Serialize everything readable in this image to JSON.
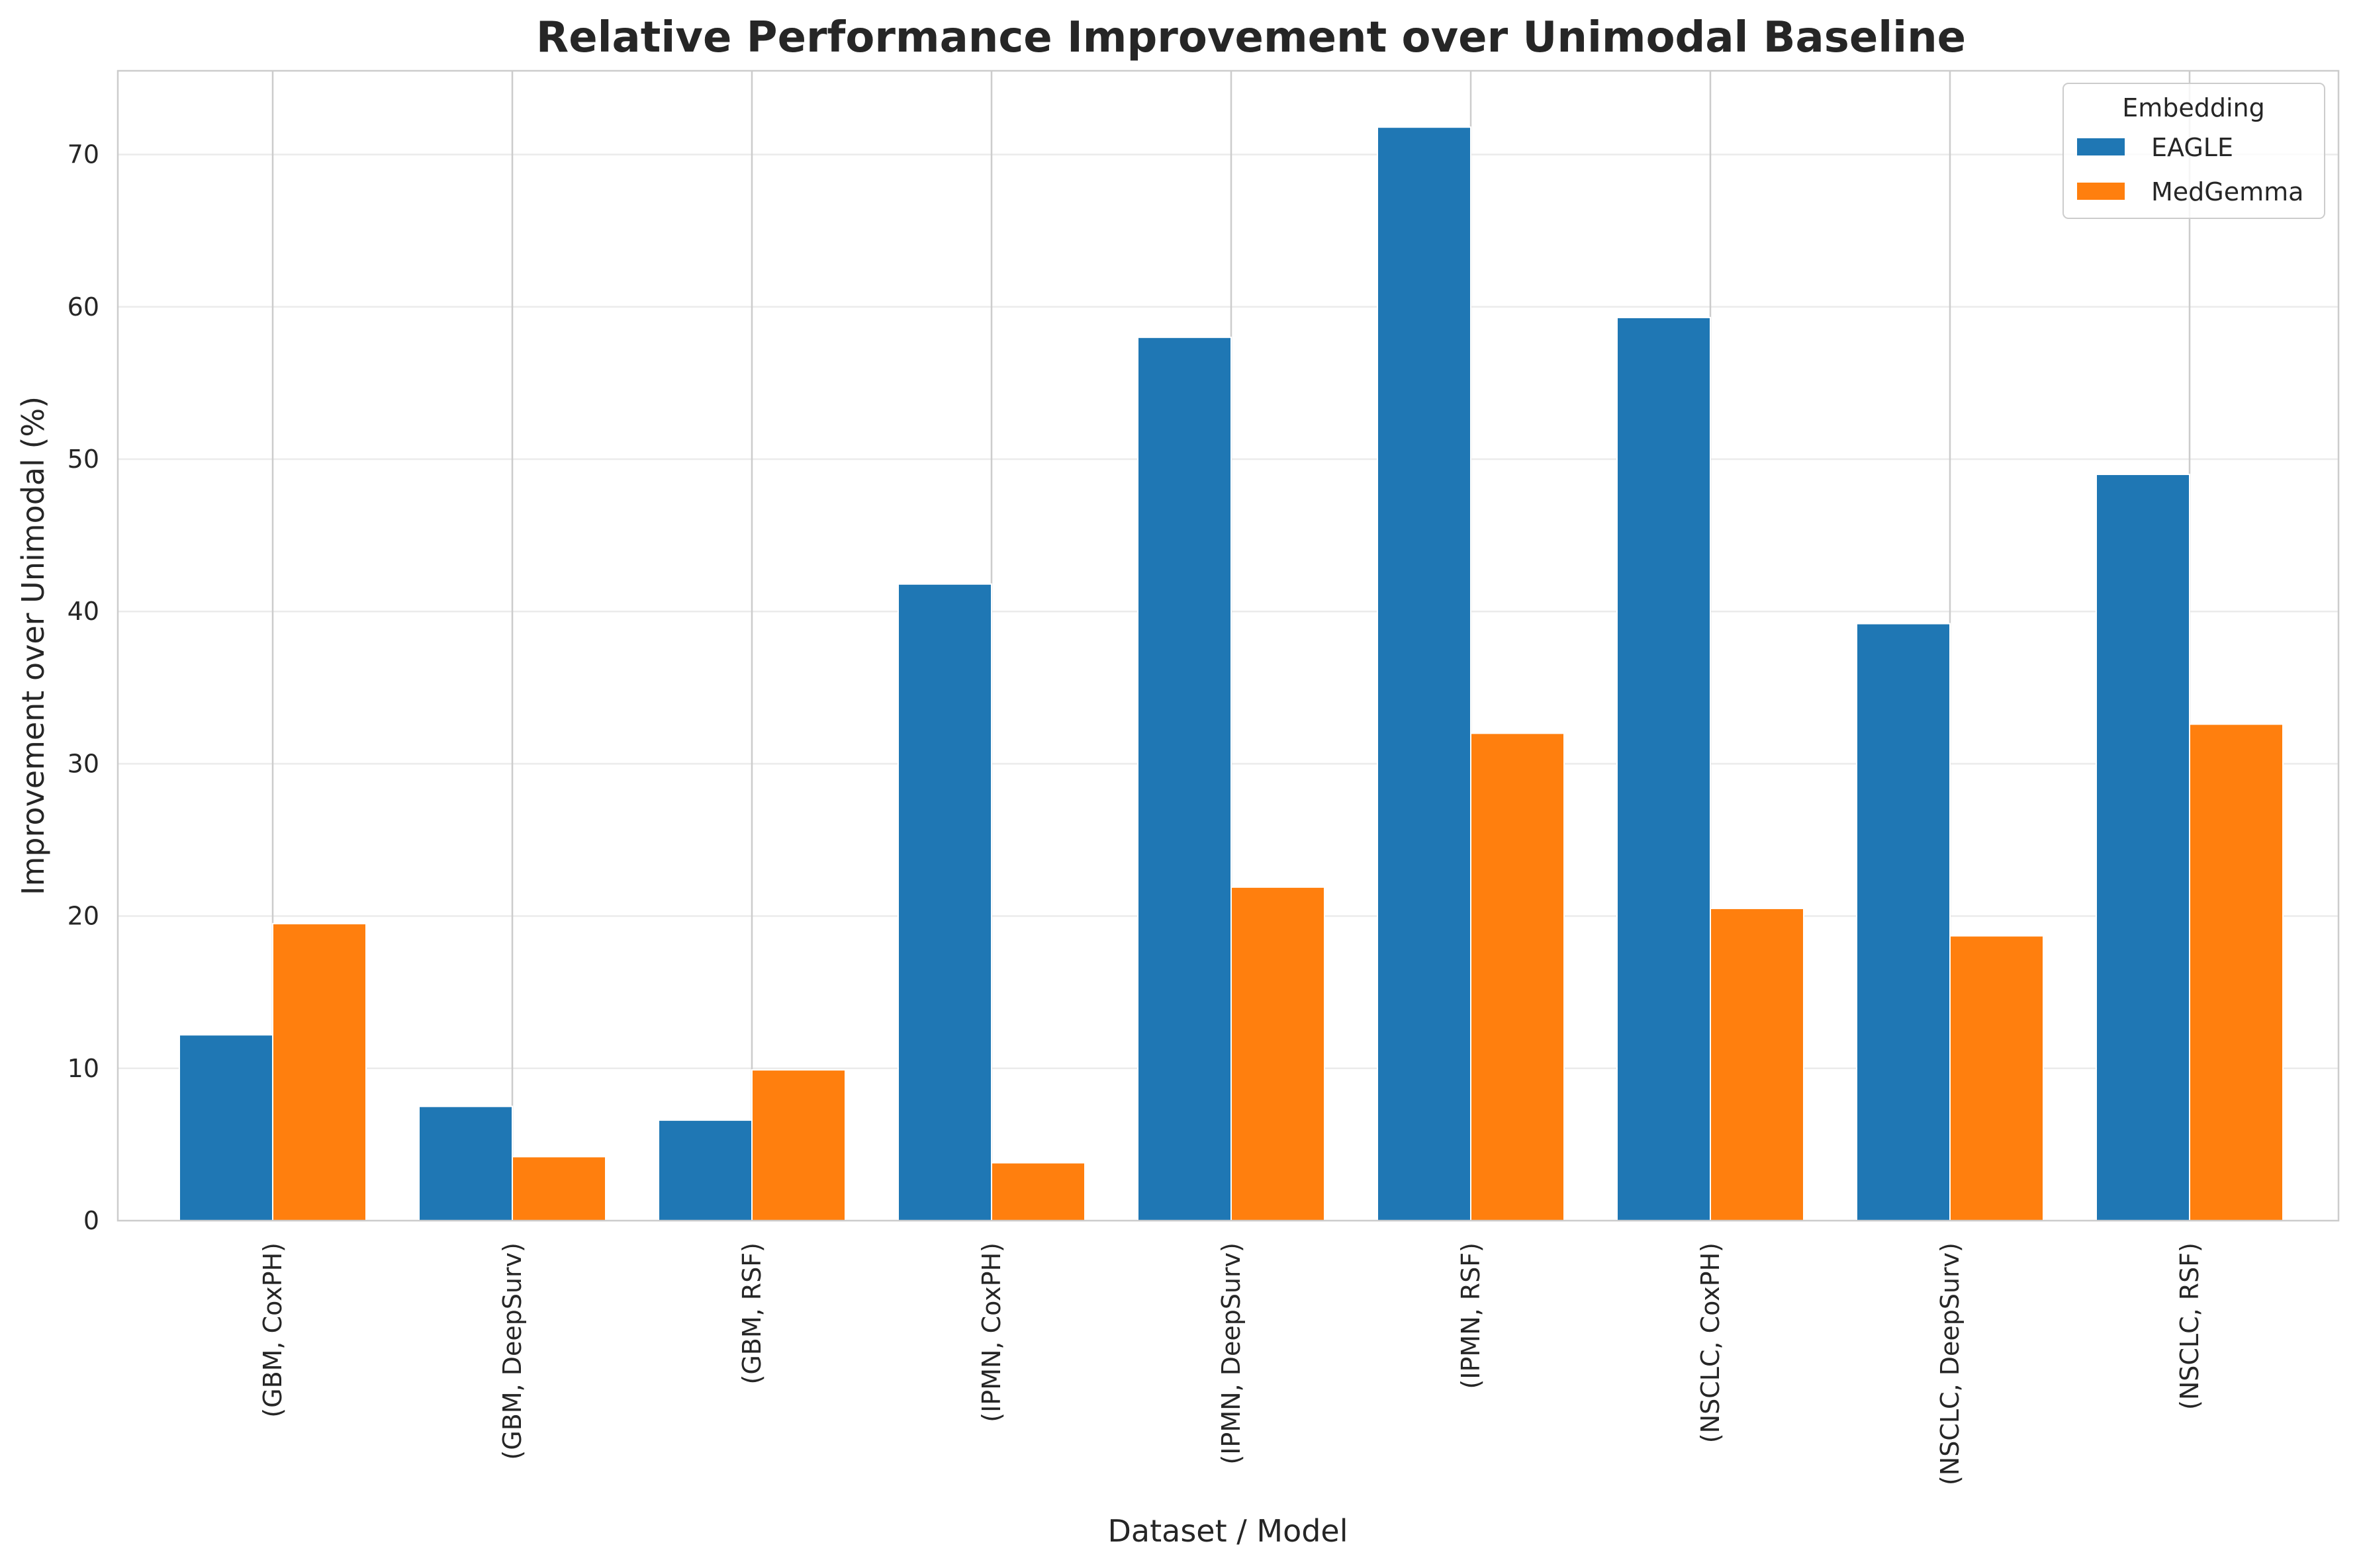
{
  "chart_data": {
    "type": "bar",
    "title": "Relative Performance Improvement over Unimodal Baseline",
    "xlabel": "Dataset / Model",
    "ylabel": "Improvement over Unimodal (%)",
    "categories": [
      "(GBM, CoxPH)",
      "(GBM, DeepSurv)",
      "(GBM, RSF)",
      "(IPMN, CoxPH)",
      "(IPMN, DeepSurv)",
      "(IPMN, RSF)",
      "(NSCLC, CoxPH)",
      "(NSCLC, DeepSurv)",
      "(NSCLC, RSF)"
    ],
    "series": [
      {
        "name": "EAGLE",
        "color": "#1f77b4",
        "values": [
          12.2,
          7.5,
          6.6,
          41.8,
          58.0,
          71.8,
          59.3,
          39.2,
          49.0
        ]
      },
      {
        "name": "MedGemma",
        "color": "#ff7f0e",
        "values": [
          19.5,
          4.2,
          9.9,
          3.8,
          21.9,
          32.0,
          20.5,
          18.7,
          32.6
        ]
      }
    ],
    "ylim": [
      0,
      75.5
    ],
    "yticks": [
      0,
      10,
      20,
      30,
      40,
      50,
      60,
      70
    ],
    "grid": true,
    "legend": {
      "title": "Embedding",
      "placement": "top-right"
    }
  }
}
